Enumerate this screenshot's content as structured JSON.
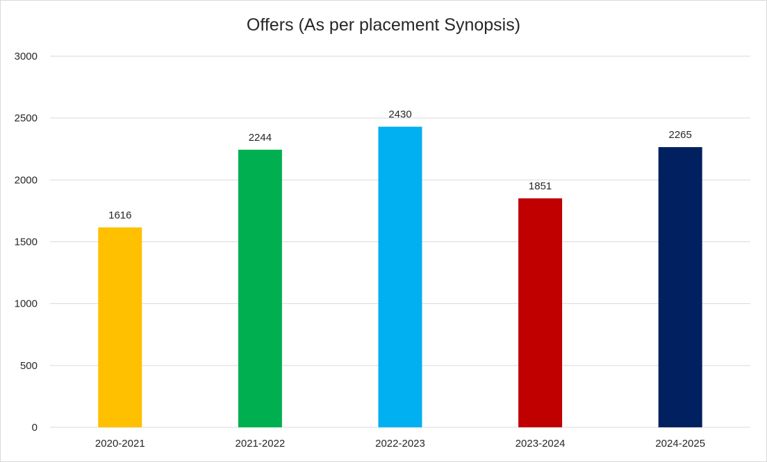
{
  "chart_data": {
    "type": "bar",
    "title": "Offers (As per placement Synopsis)",
    "categories": [
      "2020-2021",
      "2021-2022",
      "2022-2023",
      "2023-2024",
      "2024-2025"
    ],
    "values": [
      1616,
      2244,
      2430,
      1851,
      2265
    ],
    "bar_colors": [
      "#FFC000",
      "#00B050",
      "#00B0F0",
      "#C00000",
      "#002060"
    ],
    "ylim": [
      0,
      3000
    ],
    "yticks": [
      0,
      500,
      1000,
      1500,
      2000,
      2500,
      3000
    ],
    "xlabel": "",
    "ylabel": "",
    "grid": true,
    "legend": "none",
    "data_labels": true
  }
}
